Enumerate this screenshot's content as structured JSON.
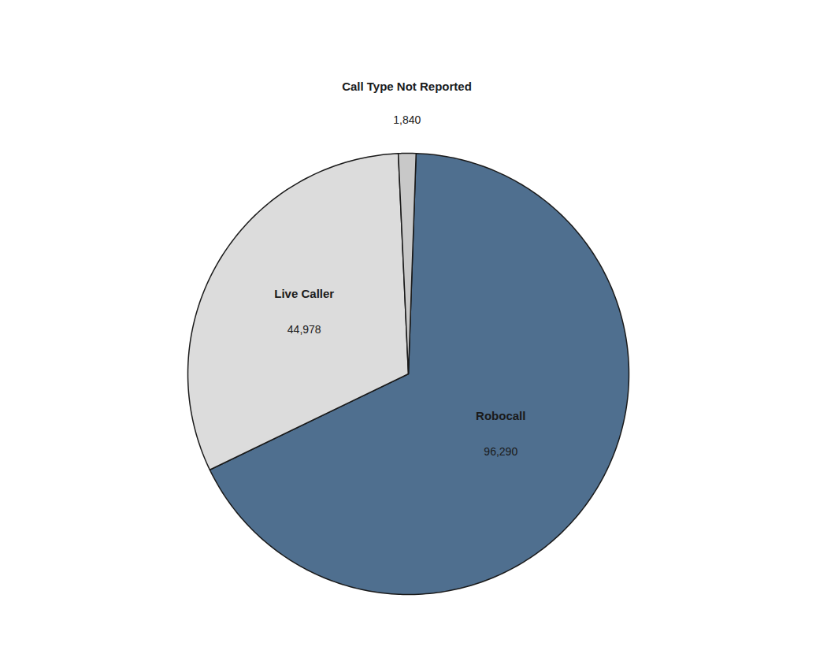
{
  "chart_data": {
    "type": "pie",
    "categories": [
      "Robocall",
      "Live Caller",
      "Call Type Not Reported"
    ],
    "values": [
      96290,
      44978,
      1840
    ],
    "value_labels": [
      "96,290",
      "44,978",
      "1,840"
    ],
    "colors": [
      "#4F6F8F",
      "#DCDCDC",
      "#C8C8C8"
    ],
    "data_labels": true
  }
}
